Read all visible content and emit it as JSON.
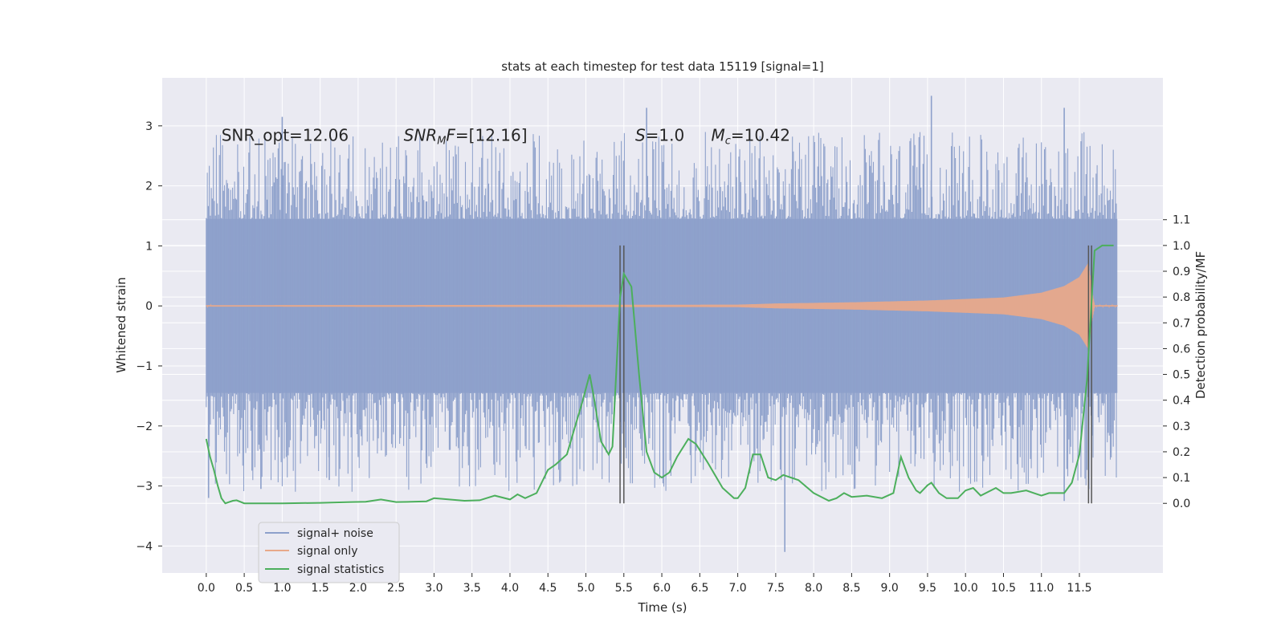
{
  "chart_data": {
    "type": "line",
    "title": "stats at each timestep for test data 15119 [signal=1]",
    "xlabel": "Time (s)",
    "ylabel": "Whitened strain",
    "y2label": "Detection probability/MF",
    "xlim": [
      -0.58,
      12.6
    ],
    "ylim": [
      -4.45,
      3.8
    ],
    "y2lim": [
      -0.27,
      1.65
    ],
    "xticks": [
      "0.0",
      "0.5",
      "1.0",
      "1.5",
      "2.0",
      "2.5",
      "3.0",
      "3.5",
      "4.0",
      "4.5",
      "5.0",
      "5.5",
      "6.0",
      "6.5",
      "7.0",
      "7.5",
      "8.0",
      "8.5",
      "9.0",
      "9.5",
      "10.0",
      "10.5",
      "11.0",
      "11.5"
    ],
    "yticks": [
      "3",
      "2",
      "1",
      "0",
      "−1",
      "−2",
      "−3",
      "−4"
    ],
    "y2ticks": [
      "1.1",
      "1.0",
      "0.9",
      "0.8",
      "0.7",
      "0.6",
      "0.5",
      "0.4",
      "0.3",
      "0.2",
      "0.1",
      "0.0"
    ],
    "grid": true,
    "legend_position": "lower-left",
    "colors": {
      "noise": "#8da0cb",
      "signal": "#e8a98a",
      "stats": "#4caf5c",
      "background": "#eaeaf2",
      "grid": "#ffffff",
      "vline": "#555555"
    },
    "annotations": [
      {
        "text": "SNR_opt=12.06",
        "x": 0.2,
        "y": 2.75
      },
      {
        "prefix": "SNR",
        "sub": "M",
        "suffix": "F=[12.16]",
        "x": 2.6,
        "y": 2.75
      },
      {
        "prefix": "S",
        "sub": "",
        "suffix": "=1.0",
        "x": 5.65,
        "y": 2.75
      },
      {
        "prefix": "M",
        "sub": "c",
        "suffix": "=10.42",
        "x": 6.65,
        "y": 2.75
      }
    ],
    "vlines": [
      5.45,
      5.5,
      11.62,
      11.66
    ],
    "vline_range": [
      -0.0,
      1.0
    ],
    "series": [
      {
        "name": "signal+ noise",
        "kind": "noise_band",
        "x_range": [
          0.0,
          12.0
        ],
        "core_amplitude": 1.45,
        "peak_max": 2.9,
        "peak_min": -3.1,
        "outliers": [
          [
            1.0,
            3.15
          ],
          [
            5.8,
            3.3
          ],
          [
            9.55,
            3.5
          ],
          [
            11.3,
            3.3
          ],
          [
            7.62,
            -4.1
          ],
          [
            0.03,
            -3.2
          ],
          [
            0.72,
            -3.05
          ],
          [
            1.62,
            -2.9
          ],
          [
            11.3,
            -3.25
          ]
        ]
      },
      {
        "name": "signal only",
        "kind": "chirp",
        "x_range": [
          0.0,
          12.0
        ],
        "amplitude_points": [
          [
            0.0,
            0.01
          ],
          [
            7.0,
            0.02
          ],
          [
            7.5,
            0.04
          ],
          [
            8.5,
            0.06
          ],
          [
            9.5,
            0.09
          ],
          [
            10.5,
            0.14
          ],
          [
            11.0,
            0.22
          ],
          [
            11.3,
            0.33
          ],
          [
            11.5,
            0.48
          ],
          [
            11.62,
            0.72
          ],
          [
            11.66,
            0.3
          ],
          [
            11.7,
            0.01
          ],
          [
            12.0,
            0.01
          ]
        ]
      },
      {
        "name": "signal statistics",
        "kind": "line",
        "axis": "right",
        "points": [
          [
            0.0,
            0.25
          ],
          [
            0.05,
            0.18
          ],
          [
            0.1,
            0.13
          ],
          [
            0.15,
            0.07
          ],
          [
            0.2,
            0.02
          ],
          [
            0.25,
            0.0
          ],
          [
            0.35,
            0.01
          ],
          [
            0.4,
            0.012
          ],
          [
            0.5,
            0.0
          ],
          [
            0.6,
            0.0
          ],
          [
            0.8,
            0.0
          ],
          [
            1.0,
            0.0
          ],
          [
            1.5,
            0.002
          ],
          [
            1.9,
            0.005
          ],
          [
            2.1,
            0.006
          ],
          [
            2.3,
            0.015
          ],
          [
            2.4,
            0.01
          ],
          [
            2.5,
            0.005
          ],
          [
            2.7,
            0.006
          ],
          [
            2.9,
            0.008
          ],
          [
            3.0,
            0.02
          ],
          [
            3.2,
            0.015
          ],
          [
            3.4,
            0.01
          ],
          [
            3.6,
            0.012
          ],
          [
            3.8,
            0.03
          ],
          [
            4.0,
            0.015
          ],
          [
            4.1,
            0.035
          ],
          [
            4.2,
            0.02
          ],
          [
            4.35,
            0.04
          ],
          [
            4.5,
            0.13
          ],
          [
            4.6,
            0.15
          ],
          [
            4.75,
            0.19
          ],
          [
            4.85,
            0.29
          ],
          [
            4.95,
            0.39
          ],
          [
            5.05,
            0.5
          ],
          [
            5.1,
            0.42
          ],
          [
            5.2,
            0.24
          ],
          [
            5.3,
            0.19
          ],
          [
            5.35,
            0.22
          ],
          [
            5.45,
            0.8
          ],
          [
            5.5,
            0.89
          ],
          [
            5.6,
            0.84
          ],
          [
            5.7,
            0.5
          ],
          [
            5.8,
            0.2
          ],
          [
            5.9,
            0.12
          ],
          [
            6.0,
            0.1
          ],
          [
            6.1,
            0.12
          ],
          [
            6.2,
            0.18
          ],
          [
            6.35,
            0.25
          ],
          [
            6.45,
            0.23
          ],
          [
            6.6,
            0.16
          ],
          [
            6.8,
            0.06
          ],
          [
            6.95,
            0.02
          ],
          [
            7.0,
            0.02
          ],
          [
            7.1,
            0.06
          ],
          [
            7.2,
            0.19
          ],
          [
            7.3,
            0.19
          ],
          [
            7.4,
            0.1
          ],
          [
            7.5,
            0.09
          ],
          [
            7.6,
            0.11
          ],
          [
            7.8,
            0.09
          ],
          [
            8.0,
            0.04
          ],
          [
            8.2,
            0.01
          ],
          [
            8.3,
            0.02
          ],
          [
            8.4,
            0.04
          ],
          [
            8.5,
            0.025
          ],
          [
            8.7,
            0.03
          ],
          [
            8.9,
            0.02
          ],
          [
            9.05,
            0.04
          ],
          [
            9.15,
            0.18
          ],
          [
            9.25,
            0.1
          ],
          [
            9.35,
            0.05
          ],
          [
            9.4,
            0.04
          ],
          [
            9.5,
            0.07
          ],
          [
            9.55,
            0.08
          ],
          [
            9.65,
            0.04
          ],
          [
            9.75,
            0.02
          ],
          [
            9.9,
            0.02
          ],
          [
            10.0,
            0.05
          ],
          [
            10.1,
            0.06
          ],
          [
            10.2,
            0.03
          ],
          [
            10.4,
            0.06
          ],
          [
            10.5,
            0.04
          ],
          [
            10.6,
            0.04
          ],
          [
            10.8,
            0.05
          ],
          [
            10.9,
            0.04
          ],
          [
            11.0,
            0.03
          ],
          [
            11.1,
            0.04
          ],
          [
            11.3,
            0.04
          ],
          [
            11.4,
            0.08
          ],
          [
            11.5,
            0.19
          ],
          [
            11.6,
            0.48
          ],
          [
            11.7,
            0.98
          ],
          [
            11.8,
            1.0
          ],
          [
            11.95,
            1.0
          ]
        ]
      }
    ]
  }
}
